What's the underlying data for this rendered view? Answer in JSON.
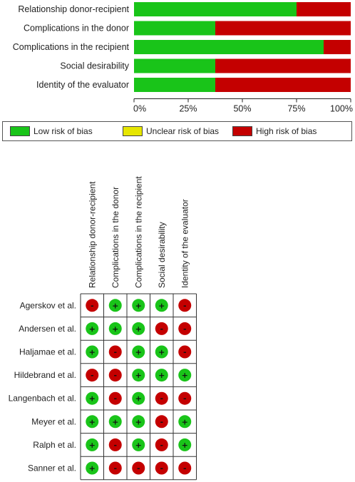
{
  "chart_data": [
    {
      "type": "bar",
      "orientation": "horizontal-stacked",
      "categories": [
        "Relationship donor-recipient",
        "Complications in the donor",
        "Complications in the recipient",
        "Social desirability",
        "Identity of the evaluator"
      ],
      "series": [
        {
          "name": "Low risk of bias",
          "color": "#19c419",
          "values": [
            75,
            37.5,
            87.5,
            37.5,
            37.5
          ]
        },
        {
          "name": "Unclear risk of bias",
          "color": "#e6e600",
          "values": [
            0,
            0,
            0,
            0,
            0
          ]
        },
        {
          "name": "High risk of bias",
          "color": "#c40000",
          "values": [
            25,
            62.5,
            12.5,
            62.5,
            62.5
          ]
        }
      ],
      "xticks": [
        "0%",
        "25%",
        "50%",
        "75%",
        "100%"
      ],
      "xlim": [
        0,
        100
      ],
      "legend": "bottom"
    },
    {
      "type": "table",
      "domains": [
        "Relationship donor-recipient",
        "Complications in the donor",
        "Complications in the recipient",
        "Social desirability",
        "Identity of the evaluator"
      ],
      "studies": [
        {
          "name": "Agerskov et al.",
          "judgements": [
            "-",
            "+",
            "+",
            "+",
            "-"
          ]
        },
        {
          "name": "Andersen et al.",
          "judgements": [
            "+",
            "+",
            "+",
            "-",
            "-"
          ]
        },
        {
          "name": "Haljamae et al.",
          "judgements": [
            "+",
            "-",
            "+",
            "+",
            "-"
          ]
        },
        {
          "name": "Hildebrand et al.",
          "judgements": [
            "-",
            "-",
            "+",
            "+",
            "+"
          ]
        },
        {
          "name": "Langenbach et al.",
          "judgements": [
            "+",
            "-",
            "+",
            "-",
            "-"
          ]
        },
        {
          "name": "Meyer et al.",
          "judgements": [
            "+",
            "+",
            "+",
            "-",
            "+"
          ]
        },
        {
          "name": "Ralph et al.",
          "judgements": [
            "+",
            "-",
            "+",
            "-",
            "+"
          ]
        },
        {
          "name": "Sanner et al.",
          "judgements": [
            "+",
            "-",
            "-",
            "-",
            "-"
          ]
        }
      ],
      "low_color": "#19c419",
      "high_color": "#c40000"
    }
  ]
}
